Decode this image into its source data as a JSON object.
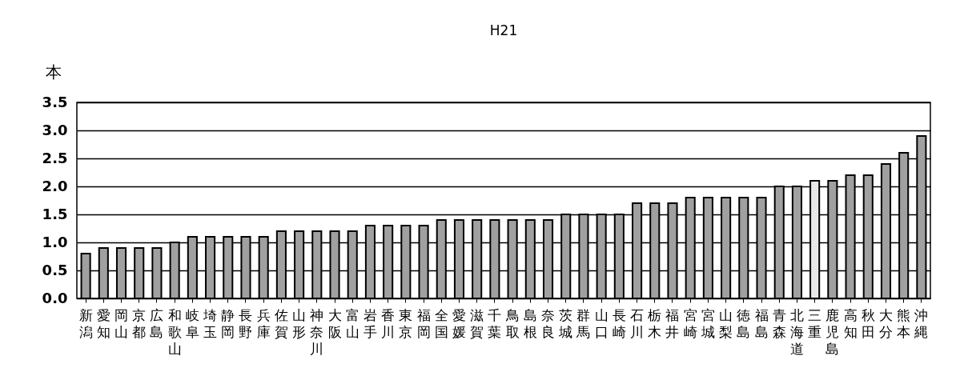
{
  "chart_data": {
    "type": "bar",
    "title": "H21",
    "ylabel": "本",
    "categories": [
      "新潟",
      "愛知",
      "岡山",
      "京都",
      "広島",
      "和歌山",
      "岐阜",
      "埼玉",
      "静岡",
      "長野",
      "兵庫",
      "佐賀",
      "山形",
      "神奈川",
      "大阪",
      "富山",
      "岩手",
      "香川",
      "東京",
      "福岡",
      "全国",
      "愛媛",
      "滋賀",
      "千葉",
      "鳥取",
      "島根",
      "奈良",
      "茨城",
      "群馬",
      "山口",
      "長崎",
      "石川",
      "栃木",
      "福井",
      "宮崎",
      "宮城",
      "山梨",
      "徳島",
      "福島",
      "青森",
      "北海道",
      "三重",
      "鹿児島",
      "高知",
      "秋田",
      "大分",
      "熊本",
      "沖縄"
    ],
    "values": [
      0.8,
      0.9,
      0.9,
      0.9,
      0.9,
      1.0,
      1.1,
      1.1,
      1.1,
      1.1,
      1.1,
      1.2,
      1.2,
      1.2,
      1.2,
      1.2,
      1.3,
      1.3,
      1.3,
      1.3,
      1.4,
      1.4,
      1.4,
      1.4,
      1.4,
      1.4,
      1.4,
      1.5,
      1.5,
      1.5,
      1.5,
      1.7,
      1.7,
      1.7,
      1.8,
      1.8,
      1.8,
      1.8,
      1.8,
      2.0,
      2.0,
      2.1,
      2.1,
      2.2,
      2.2,
      2.4,
      2.6,
      2.9
    ],
    "colors": [
      "#a0a0a0",
      "#a0a0a0",
      "#a0a0a0",
      "#a0a0a0",
      "#a0a0a0",
      "#a0a0a0",
      "#a0a0a0",
      "#a0a0a0",
      "#a0a0a0",
      "#a0a0a0",
      "#a0a0a0",
      "#a0a0a0",
      "#a0a0a0",
      "#a0a0a0",
      "#a0a0a0",
      "#a0a0a0",
      "#a0a0a0",
      "#a0a0a0",
      "#a0a0a0",
      "#a0a0a0",
      "#a0a0a0",
      "#a0a0a0",
      "#a0a0a0",
      "#a0a0a0",
      "#a0a0a0",
      "#a0a0a0",
      "#a0a0a0",
      "#a0a0a0",
      "#a0a0a0",
      "#a0a0a0",
      "#a0a0a0",
      "#a0a0a0",
      "#a0a0a0",
      "#a0a0a0",
      "#a0a0a0",
      "#a0a0a0",
      "#a0a0a0",
      "#a0a0a0",
      "#a0a0a0",
      "#a0a0a0",
      "#a0a0a0",
      "#e8e8e8",
      "#a0a0a0",
      "#a0a0a0",
      "#a0a0a0",
      "#a0a0a0",
      "#a0a0a0",
      "#a0a0a0"
    ],
    "ylim": [
      0,
      3.5
    ],
    "yticks": [
      {
        "value": 0,
        "label": "0.0"
      },
      {
        "value": 0.5,
        "label": "0.5"
      },
      {
        "value": 1,
        "label": "1.0"
      },
      {
        "value": 1.5,
        "label": "1.5"
      },
      {
        "value": 2,
        "label": "2.0"
      },
      {
        "value": 2.5,
        "label": "2.5"
      },
      {
        "value": 3,
        "label": "3.0"
      },
      {
        "value": 3.5,
        "label": "3.5"
      }
    ],
    "grid": "y"
  }
}
